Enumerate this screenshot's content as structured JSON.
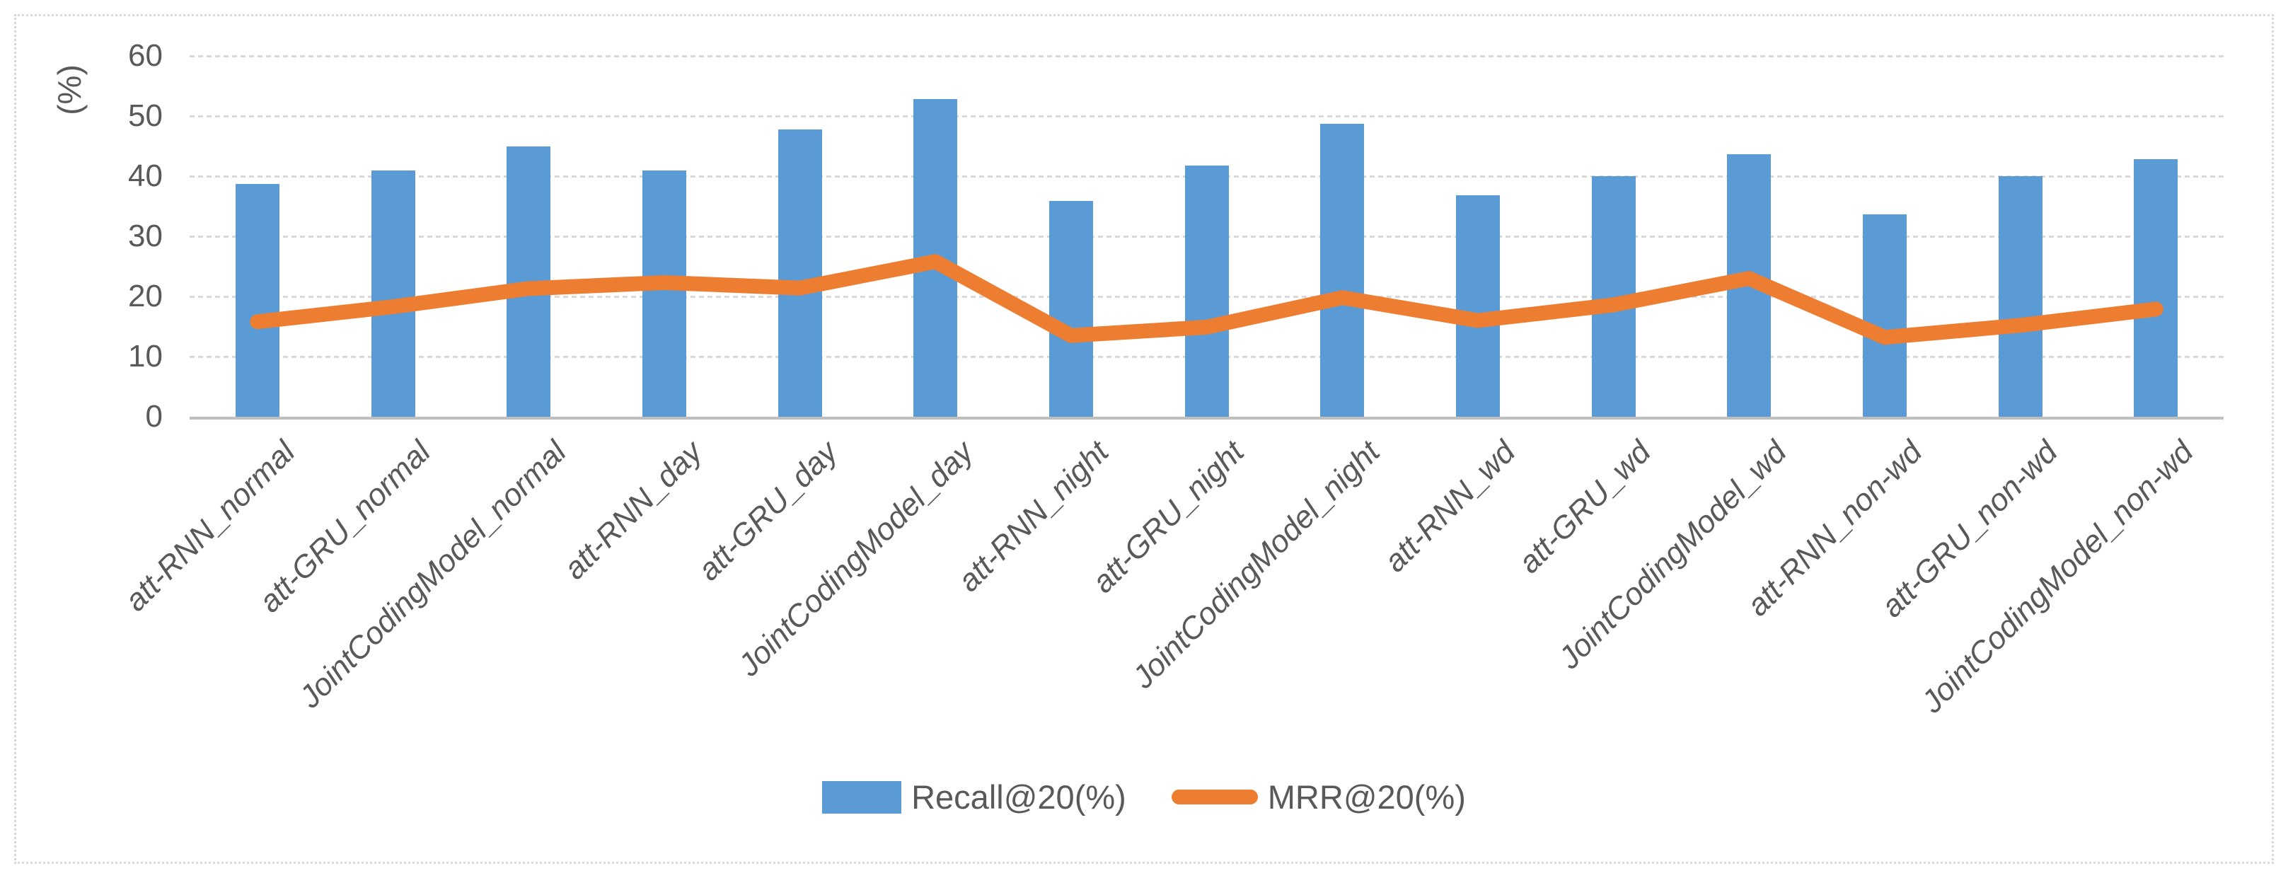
{
  "chart_data": {
    "type": "bar",
    "subtype": "bar-line-combo",
    "title": "",
    "xlabel": "",
    "ylabel": "(%)",
    "ylim": [
      0,
      60
    ],
    "yticks": [
      0,
      10,
      20,
      30,
      40,
      50,
      60
    ],
    "grid": "horizontal dotted",
    "legend_position": "bottom-center",
    "categories": [
      "att-RNN_normal",
      "att-GRU_normal",
      "JointCodingModel_normal",
      "att-RNN_day",
      "att-GRU_day",
      "JointCodingModel_day",
      "att-RNN_night",
      "att-GRU_night",
      "JointCodingModel_night",
      "att-RNN_wd",
      "att-GRU_wd",
      "JointCodingModel_wd",
      "att-RNN_non-wd",
      "att-GRU_non-wd",
      "JointCodingModel_non-wd"
    ],
    "series": [
      {
        "name": "Recall@20(%)",
        "type": "bar",
        "color": "#5B9BD5",
        "values": [
          38.7,
          40.9,
          45.0,
          40.9,
          47.8,
          52.8,
          35.9,
          41.8,
          48.7,
          36.8,
          40.0,
          43.7,
          33.7,
          40.0,
          42.8
        ]
      },
      {
        "name": "MRR@20(%)",
        "type": "line",
        "color": "#ED7D31",
        "values": [
          15.8,
          18.3,
          21.3,
          22.3,
          21.4,
          25.8,
          13.5,
          14.9,
          19.8,
          16.0,
          18.6,
          23.0,
          13.2,
          15.2,
          17.9
        ]
      }
    ]
  },
  "colors": {
    "bar": "#5B9BD5",
    "line": "#ED7D31",
    "gridline": "#D9D9D9",
    "axis": "#BFBFBF",
    "text": "#595959",
    "figure_border": "#D9D9D9",
    "background": "#FFFFFF"
  }
}
